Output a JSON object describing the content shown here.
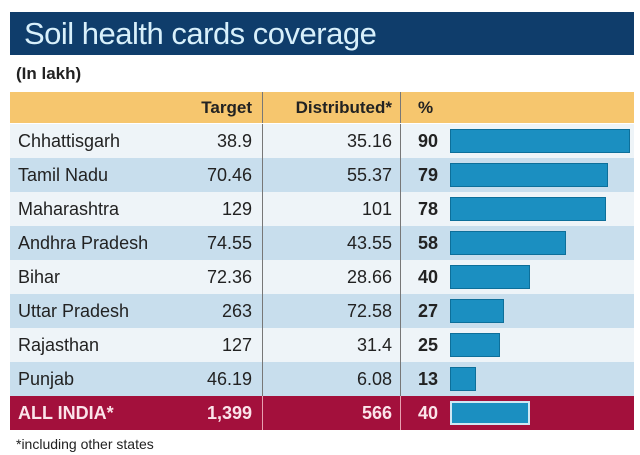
{
  "chart_data": {
    "type": "table",
    "title": "Soil health cards coverage",
    "unit": "(In lakh)",
    "columns": [
      "Target",
      "Distributed*",
      "%"
    ],
    "rows": [
      {
        "name": "Chhattisgarh",
        "target": "38.9",
        "distributed": "35.16",
        "pct": 90
      },
      {
        "name": "Tamil Nadu",
        "target": "70.46",
        "distributed": "55.37",
        "pct": 79
      },
      {
        "name": "Maharashtra",
        "target": "129",
        "distributed": "101",
        "pct": 78
      },
      {
        "name": "Andhra Pradesh",
        "target": "74.55",
        "distributed": "43.55",
        "pct": 58
      },
      {
        "name": "Bihar",
        "target": "72.36",
        "distributed": "28.66",
        "pct": 40
      },
      {
        "name": "Uttar Pradesh",
        "target": "263",
        "distributed": "72.58",
        "pct": 27
      },
      {
        "name": "Rajasthan",
        "target": "127",
        "distributed": "31.4",
        "pct": 25
      },
      {
        "name": "Punjab",
        "target": "46.19",
        "distributed": "6.08",
        "pct": 13
      }
    ],
    "total": {
      "name": "ALL INDIA*",
      "target": "1,399",
      "distributed": "566",
      "pct": 40
    },
    "footnote": "*including other states",
    "pct_max": 100
  },
  "colors": {
    "title_bg": "#0f3d6b",
    "header_bg": "#f6c66e",
    "total_bg": "#a3103c",
    "bar": "#1b8fc1"
  }
}
